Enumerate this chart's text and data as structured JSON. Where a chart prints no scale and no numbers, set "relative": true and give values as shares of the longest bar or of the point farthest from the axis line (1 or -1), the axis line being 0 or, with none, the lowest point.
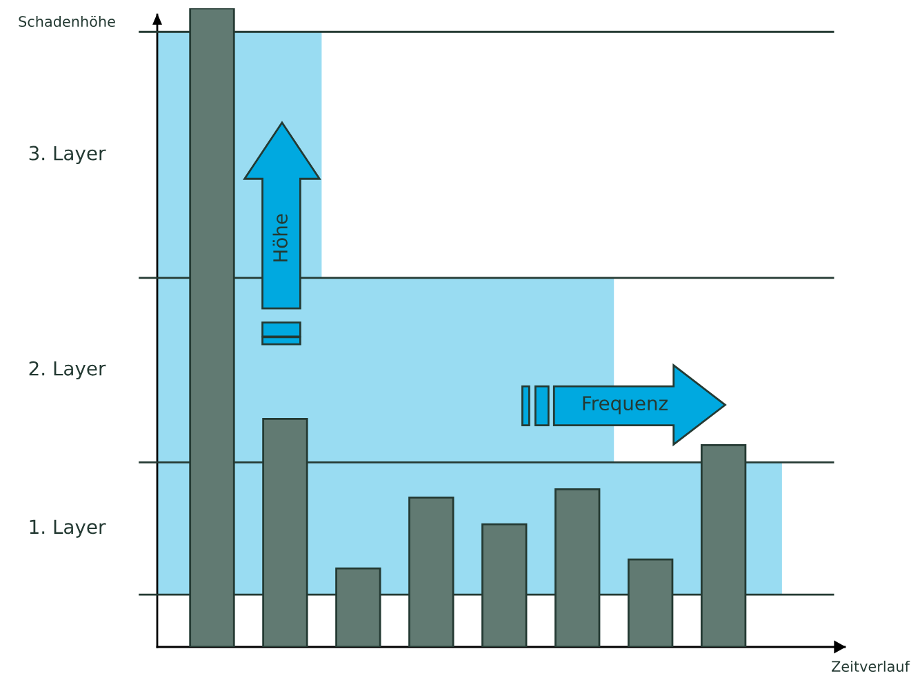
{
  "chart_data": {
    "type": "bar",
    "relative": true,
    "xlabel": "Zeitverlauf",
    "ylabel": "Schadenhöhe",
    "categories": [
      null,
      null,
      null,
      null,
      null,
      null,
      null,
      null
    ],
    "values": [
      1,
      0.357,
      0.123,
      0.234,
      0.192,
      0.247,
      0.137,
      0.316
    ],
    "color": "#617a72",
    "ref_lines": [
      {
        "axis": "y",
        "value": 0.963,
        "color": "#243a33"
      },
      {
        "axis": "y",
        "value": 0.578,
        "color": "#243a33"
      },
      {
        "axis": "y",
        "value": 0.289,
        "color": "#243a33"
      },
      {
        "axis": "y",
        "value": 0.082,
        "color": "#243a33"
      }
    ],
    "annotations": [
      "3. Layer",
      "2. Layer",
      "1. Layer",
      "Höhe",
      "Frequenz"
    ],
    "grid": false,
    "legend": false
  }
}
